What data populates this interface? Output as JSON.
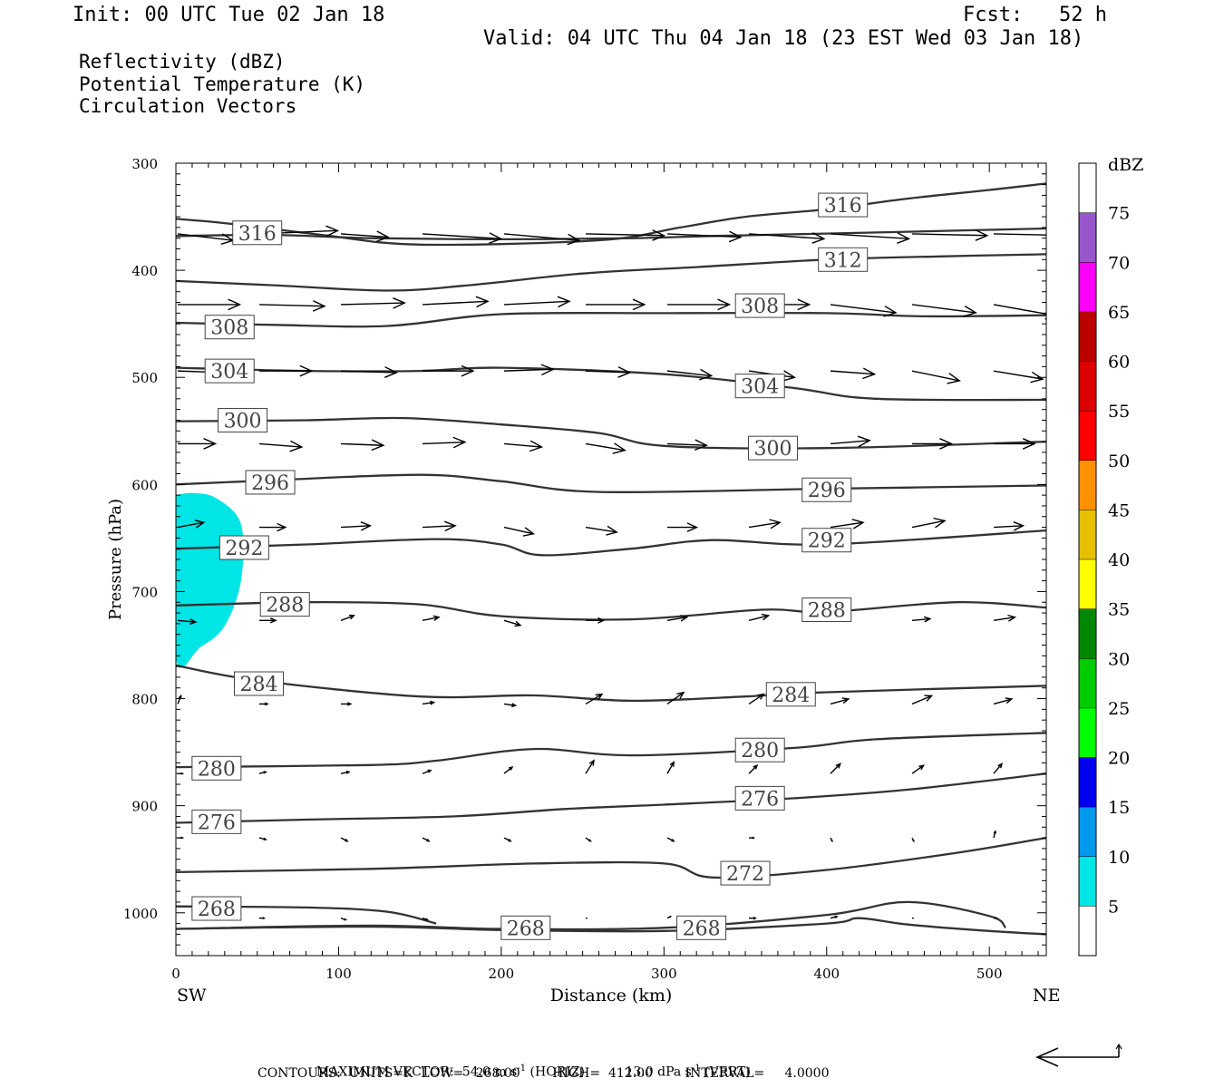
{
  "header": {
    "init": "Init: 00 UTC Tue 02 Jan 18",
    "fcst": "Fcst:   52 h",
    "valid": "Valid: 04 UTC Thu 04 Jan 18 (23 EST Wed 03 Jan 18)"
  },
  "layers": [
    {
      "label": "Reflectivity (dBZ)",
      "color": "#000000"
    },
    {
      "label": "Potential Temperature (K)",
      "color": "#666666"
    },
    {
      "label": "Circulation Vectors",
      "color": "#000000"
    }
  ],
  "chart_data": {
    "type": "cross-section",
    "xlabel": "Distance (km)",
    "ylabel": "Pressure (hPa)",
    "xlim": [
      0,
      535
    ],
    "ylim": [
      1040,
      300
    ],
    "x_ticks": [
      0,
      100,
      200,
      300,
      400,
      500
    ],
    "y_ticks": [
      300,
      400,
      500,
      600,
      700,
      800,
      900,
      1000
    ],
    "left_end": "SW",
    "right_end": "NE",
    "colorbar": {
      "unit": "dBZ",
      "levels": [
        5,
        10,
        15,
        20,
        25,
        30,
        35,
        40,
        45,
        50,
        55,
        60,
        65,
        70,
        75
      ],
      "colors": [
        "#ffffff",
        "#00e5e5",
        "#0099ee",
        "#0000ee",
        "#00ff00",
        "#00cc00",
        "#008800",
        "#ffff00",
        "#e6c000",
        "#ff9000",
        "#ff0000",
        "#dd0000",
        "#bb0000",
        "#ff00ff",
        "#9955cc",
        "#ffffff"
      ]
    },
    "reflectivity_region": {
      "value_range": "5-10",
      "color": "#00e5e5",
      "boundary": [
        [
          0,
          610
        ],
        [
          10,
          608
        ],
        [
          25,
          613
        ],
        [
          40,
          637
        ],
        [
          40,
          690
        ],
        [
          30,
          732
        ],
        [
          15,
          752
        ],
        [
          0,
          762
        ]
      ]
    },
    "theta_contours": [
      {
        "value": 316,
        "points": [
          [
            0,
            352
          ],
          [
            30,
            356
          ],
          [
            90,
            367
          ],
          [
            150,
            376
          ],
          [
            260,
            372
          ],
          [
            310,
            360
          ],
          [
            350,
            350
          ],
          [
            400,
            343
          ],
          [
            450,
            333
          ],
          [
            500,
            325
          ],
          [
            535,
            319
          ]
        ],
        "labels": [
          {
            "x": 50,
            "p": 365,
            "text": "316"
          },
          {
            "x": 410,
            "p": 339,
            "text": "316"
          }
        ]
      },
      {
        "value": 312,
        "points": [
          [
            0,
            368
          ],
          [
            60,
            367
          ],
          [
            120,
            370
          ],
          [
            200,
            371
          ],
          [
            280,
            370
          ],
          [
            330,
            368
          ],
          [
            390,
            366
          ],
          [
            450,
            364
          ],
          [
            535,
            361
          ]
        ],
        "labels": [
          {
            "x": 410,
            "p": 390,
            "text": "312"
          }
        ]
      },
      {
        "value": 312,
        "points": [
          [
            0,
            410
          ],
          [
            60,
            414
          ],
          [
            130,
            419
          ],
          [
            180,
            414
          ],
          [
            250,
            403
          ],
          [
            320,
            397
          ],
          [
            400,
            390
          ],
          [
            470,
            387
          ],
          [
            535,
            385
          ]
        ],
        "labels": []
      },
      {
        "value": 308,
        "points": [
          [
            0,
            449
          ],
          [
            60,
            451
          ],
          [
            130,
            452
          ],
          [
            200,
            441
          ],
          [
            300,
            440
          ],
          [
            400,
            440
          ],
          [
            460,
            443
          ],
          [
            535,
            442
          ]
        ],
        "labels": [
          {
            "x": 33,
            "p": 453,
            "text": "308"
          },
          {
            "x": 359,
            "p": 433,
            "text": "308"
          }
        ]
      },
      {
        "value": 304,
        "points": [
          [
            0,
            491
          ],
          [
            80,
            494
          ],
          [
            150,
            494
          ],
          [
            200,
            491
          ],
          [
            300,
            497
          ],
          [
            380,
            510
          ],
          [
            430,
            520
          ],
          [
            535,
            521
          ]
        ],
        "labels": [
          {
            "x": 33,
            "p": 494,
            "text": "304"
          },
          {
            "x": 359,
            "p": 508,
            "text": "304"
          }
        ]
      },
      {
        "value": 300,
        "points": [
          [
            0,
            541
          ],
          [
            80,
            540
          ],
          [
            140,
            538
          ],
          [
            200,
            544
          ],
          [
            260,
            552
          ],
          [
            300,
            564
          ],
          [
            400,
            566
          ],
          [
            535,
            560
          ]
        ],
        "labels": [
          {
            "x": 41,
            "p": 540,
            "text": "300"
          },
          {
            "x": 367,
            "p": 566,
            "text": "300"
          }
        ]
      },
      {
        "value": 296,
        "points": [
          [
            0,
            600
          ],
          [
            60,
            596
          ],
          [
            150,
            591
          ],
          [
            200,
            597
          ],
          [
            260,
            607
          ],
          [
            400,
            604
          ],
          [
            535,
            601
          ]
        ],
        "labels": [
          {
            "x": 58,
            "p": 598,
            "text": "296"
          },
          {
            "x": 400,
            "p": 605,
            "text": "296"
          }
        ]
      },
      {
        "value": 292,
        "points": [
          [
            0,
            660
          ],
          [
            80,
            656
          ],
          [
            160,
            651
          ],
          [
            200,
            656
          ],
          [
            225,
            666
          ],
          [
            280,
            660
          ],
          [
            330,
            652
          ],
          [
            400,
            656
          ],
          [
            535,
            643
          ]
        ],
        "labels": [
          {
            "x": 42,
            "p": 659,
            "text": "292"
          },
          {
            "x": 400,
            "p": 652,
            "text": "292"
          }
        ]
      },
      {
        "value": 288,
        "points": [
          [
            0,
            713
          ],
          [
            80,
            710
          ],
          [
            150,
            712
          ],
          [
            200,
            723
          ],
          [
            280,
            726
          ],
          [
            360,
            717
          ],
          [
            400,
            719
          ],
          [
            480,
            710
          ],
          [
            535,
            715
          ]
        ],
        "labels": [
          {
            "x": 67,
            "p": 712,
            "text": "288"
          },
          {
            "x": 400,
            "p": 717,
            "text": "288"
          }
        ]
      },
      {
        "value": 284,
        "points": [
          [
            0,
            769
          ],
          [
            50,
            783
          ],
          [
            150,
            798
          ],
          [
            220,
            797
          ],
          [
            280,
            802
          ],
          [
            350,
            798
          ],
          [
            400,
            794
          ],
          [
            535,
            788
          ]
        ],
        "labels": [
          {
            "x": 51,
            "p": 786,
            "text": "284"
          },
          {
            "x": 378,
            "p": 796,
            "text": "284"
          }
        ]
      },
      {
        "value": 280,
        "points": [
          [
            0,
            864
          ],
          [
            120,
            862
          ],
          [
            160,
            858
          ],
          [
            220,
            847
          ],
          [
            280,
            853
          ],
          [
            380,
            846
          ],
          [
            430,
            838
          ],
          [
            535,
            832
          ]
        ],
        "labels": [
          {
            "x": 25,
            "p": 865,
            "text": "280"
          },
          {
            "x": 359,
            "p": 848,
            "text": "280"
          }
        ]
      },
      {
        "value": 276,
        "points": [
          [
            0,
            916
          ],
          [
            80,
            913
          ],
          [
            170,
            910
          ],
          [
            240,
            903
          ],
          [
            300,
            899
          ],
          [
            380,
            893
          ],
          [
            450,
            885
          ],
          [
            535,
            870
          ]
        ],
        "labels": [
          {
            "x": 25,
            "p": 915,
            "text": "276"
          },
          {
            "x": 359,
            "p": 893,
            "text": "276"
          }
        ]
      },
      {
        "value": 272,
        "points": [
          [
            0,
            962
          ],
          [
            120,
            959
          ],
          [
            220,
            954
          ],
          [
            300,
            954
          ],
          [
            330,
            967
          ],
          [
            400,
            960
          ],
          [
            480,
            944
          ],
          [
            535,
            930
          ]
        ],
        "labels": [
          {
            "x": 350,
            "p": 963,
            "text": "272"
          }
        ]
      },
      {
        "value": 268,
        "points": [
          [
            0,
            994
          ],
          [
            80,
            995
          ],
          [
            130,
            999
          ],
          [
            160,
            1010
          ]
        ],
        "labels": [
          {
            "x": 25,
            "p": 996,
            "text": "268"
          }
        ]
      },
      {
        "value": 268,
        "points": [
          [
            0,
            1015
          ],
          [
            120,
            1012
          ],
          [
            200,
            1015
          ],
          [
            300,
            1014
          ],
          [
            400,
            1002
          ],
          [
            450,
            990
          ],
          [
            500,
            1003
          ],
          [
            510,
            1014
          ]
        ],
        "labels": []
      },
      {
        "value": 268,
        "points": [
          [
            0,
            1015
          ],
          [
            120,
            1013
          ],
          [
            200,
            1016
          ],
          [
            300,
            1017
          ],
          [
            400,
            1010
          ],
          [
            420,
            1005
          ],
          [
            450,
            1011
          ],
          [
            500,
            1017
          ],
          [
            535,
            1020
          ]
        ],
        "labels": [
          {
            "x": 215,
            "p": 1014,
            "text": "268"
          },
          {
            "x": 323,
            "p": 1014,
            "text": "268"
          }
        ]
      }
    ],
    "vector_rows": [
      {
        "p": 366,
        "u": [
          3.4,
          4.8,
          2.9,
          4.8,
          4.6,
          4.8,
          4.5,
          4.6,
          4.8,
          4.6,
          4.8,
          2.6
        ],
        "w": [
          -0.4,
          0.2,
          -0.2,
          -0.3,
          -0.4,
          -0.1,
          -0.2,
          -0.3,
          -0.3,
          -0.1,
          -0.1,
          -0.1
        ]
      },
      {
        "p": 432,
        "u": [
          3.8,
          4.0,
          3.9,
          4.0,
          4.0,
          3.6,
          3.8,
          3.7,
          4.0,
          3.9,
          3.9,
          3.5
        ],
        "w": [
          0.0,
          -0.1,
          0.1,
          0.2,
          0.2,
          0.0,
          0.0,
          0.0,
          -0.5,
          -0.5,
          -0.7,
          -0.5
        ]
      },
      {
        "p": 494,
        "u": [
          2.8,
          3.2,
          3.4,
          3.1,
          3.0,
          2.7,
          2.7,
          2.8,
          2.7,
          2.9,
          3.0,
          3.2
        ],
        "w": [
          -0.1,
          0.0,
          -0.1,
          0.0,
          0.1,
          -0.1,
          -0.3,
          -0.4,
          -0.2,
          -0.6,
          -0.5,
          -0.5
        ]
      },
      {
        "p": 562,
        "u": [
          2.3,
          2.6,
          2.6,
          2.6,
          2.3,
          2.4,
          2.4,
          2.4,
          2.4,
          2.4,
          2.5,
          2.6
        ],
        "w": [
          0.0,
          -0.2,
          -0.1,
          0.1,
          -0.2,
          -0.4,
          -0.1,
          -0.1,
          0.2,
          0.0,
          0.0,
          0.1
        ]
      },
      {
        "p": 640,
        "u": [
          1.6,
          1.6,
          1.8,
          2.0,
          1.8,
          1.9,
          1.8,
          1.9,
          2.0,
          2.0,
          1.8,
          2.0
        ],
        "w": [
          0.3,
          0.0,
          0.1,
          0.1,
          -0.4,
          -0.3,
          0.0,
          0.3,
          0.3,
          0.4,
          0.1,
          0.1
        ]
      },
      {
        "p": 727,
        "u": [
          1.1,
          1.0,
          0.8,
          1.0,
          1.0,
          1.1,
          1.2,
          1.2,
          1.2,
          1.1,
          1.3,
          1.4
        ],
        "w": [
          -0.1,
          0.0,
          0.3,
          0.2,
          -0.3,
          0.0,
          0.2,
          0.3,
          0.4,
          0.1,
          0.2,
          -0.1
        ]
      },
      {
        "p": 805,
        "u": [
          0.2,
          0.5,
          0.6,
          0.7,
          0.7,
          1.0,
          1.0,
          0.9,
          1.1,
          1.2,
          1.1,
          1.0
        ],
        "w": [
          0.5,
          0.0,
          0.0,
          0.1,
          -0.1,
          0.6,
          0.7,
          0.6,
          0.3,
          0.5,
          0.3,
          0.0
        ]
      },
      {
        "p": 870,
        "u": [
          0.3,
          0.4,
          0.5,
          0.5,
          0.5,
          0.5,
          0.4,
          0.5,
          0.6,
          0.7,
          0.5,
          0.5
        ],
        "w": [
          0.0,
          0.1,
          0.1,
          0.2,
          0.4,
          0.8,
          0.7,
          0.5,
          0.6,
          0.5,
          0.6,
          0.4
        ]
      },
      {
        "p": 930,
        "u": [
          0.3,
          0.4,
          0.4,
          0.4,
          0.4,
          0.3,
          0.4,
          0.3,
          0.1,
          0.1,
          0.1,
          0.1
        ],
        "w": [
          0.0,
          -0.1,
          -0.2,
          -0.2,
          -0.2,
          -0.2,
          -0.2,
          0.0,
          -0.2,
          -0.2,
          0.4,
          0.0
        ]
      },
      {
        "p": 1005,
        "u": [
          0.0,
          0.3,
          0.3,
          0.3,
          0.1,
          0.1,
          0.2,
          0.4,
          0.4,
          0.1,
          0.2,
          0.2
        ],
        "w": [
          0.0,
          0.0,
          -0.1,
          -0.1,
          0.0,
          0.0,
          0.1,
          0.0,
          0.1,
          0.0,
          0.0,
          0.1
        ]
      }
    ]
  },
  "footer": {
    "max_vector_label": "MAXIMUM VECTOR:",
    "horiz_value": "54.0",
    "horiz_unit_base": "m s",
    "horiz_unit_exp": "-1",
    "horiz_note": "(HORIZ)",
    "vert_value": "13.0",
    "vert_unit_base": "dPa s",
    "vert_unit_exp": "-1",
    "vert_note": "(VERT)",
    "contours_line": "CONTOURS:  UNITS=K  LOW=   268.00        HIGH=  412.00        INTERVAL=     4.0000"
  }
}
